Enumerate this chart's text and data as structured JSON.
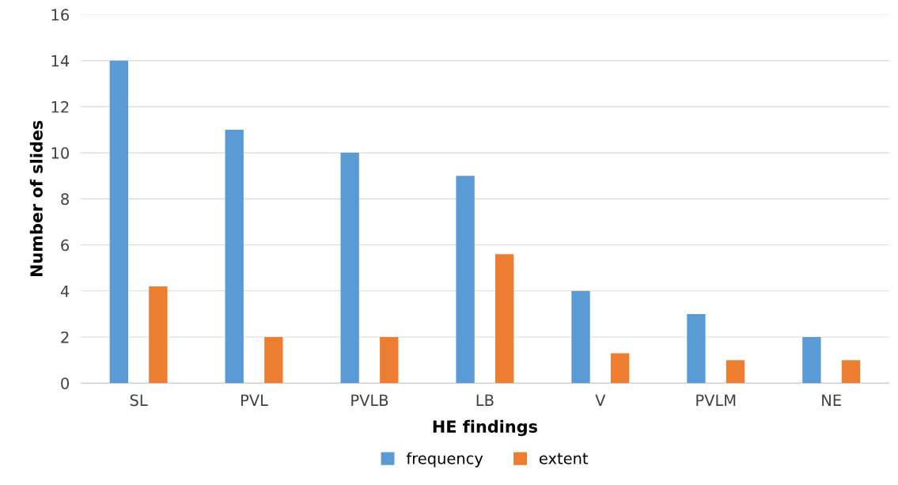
{
  "chart_data": {
    "type": "bar",
    "xlabel": "HE findings",
    "ylabel": "Number of slides",
    "categories": [
      "SL",
      "PVL",
      "PVLB",
      "LB",
      "V",
      "PVLM",
      "NE"
    ],
    "series": [
      {
        "name": "frequency",
        "color": "#5b9bd5",
        "values": [
          14,
          11,
          10,
          9,
          4,
          3,
          2
        ]
      },
      {
        "name": "extent",
        "color": "#ed7d31",
        "values": [
          4.2,
          2,
          2,
          5.6,
          1.3,
          1,
          1
        ]
      }
    ],
    "ylim": [
      0,
      16
    ],
    "yticks": [
      0,
      2,
      4,
      6,
      8,
      10,
      12,
      14,
      16
    ],
    "grid": "y",
    "legend": "bottom"
  }
}
